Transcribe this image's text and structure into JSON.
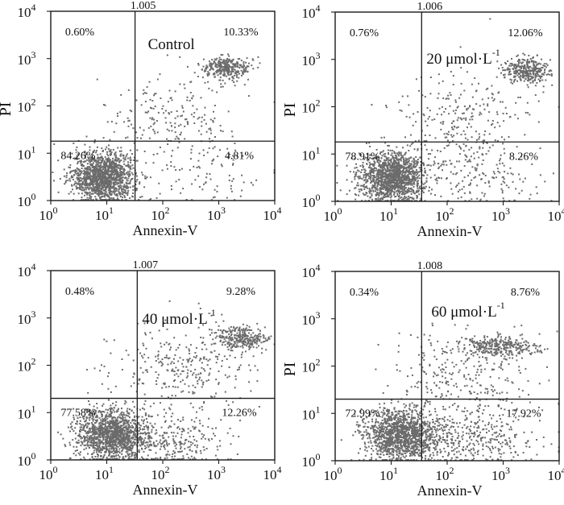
{
  "colors": {
    "dots": "#6b6b6b",
    "axes": "#1a1a1a",
    "background": "#ffffff"
  },
  "chart_data": [
    {
      "type": "scatter",
      "panel_id": "1.005",
      "condition": "Control",
      "xlabel": "Annexin-V",
      "ylabel": "PI",
      "xscale": "log",
      "yscale": "log",
      "xlim": [
        1,
        10000
      ],
      "ylim": [
        1,
        10000
      ],
      "gate": {
        "x": 32,
        "y": 18
      },
      "quadrants": {
        "upper_left": "0.60%",
        "upper_right": "10.33%",
        "lower_left": "84.26%",
        "lower_right": "4.81%"
      },
      "clusters": [
        {
          "name": "viable",
          "cx": 8.5,
          "cy": 3.3,
          "spread_x": 0.28,
          "spread_y": 0.26,
          "n": 1400
        },
        {
          "name": "late-apoptotic",
          "cx": 1400,
          "cy": 650,
          "spread_x": 0.22,
          "spread_y": 0.12,
          "n": 320
        },
        {
          "name": "trail",
          "cx": 130,
          "cy": 60,
          "spread_x": 0.55,
          "spread_y": 0.45,
          "n": 200
        },
        {
          "name": "early-apoptotic",
          "cx": 600,
          "cy": 4,
          "spread_x": 0.5,
          "spread_y": 0.35,
          "n": 90
        }
      ]
    },
    {
      "type": "scatter",
      "panel_id": "1.006",
      "condition": "20 μmol·L",
      "condition_sup": "-1",
      "xlabel": "Annexin-V",
      "ylabel": "PI",
      "xscale": "log",
      "yscale": "log",
      "xlim": [
        1,
        10000
      ],
      "ylim": [
        1,
        10000
      ],
      "gate": {
        "x": 35,
        "y": 18
      },
      "quadrants": {
        "upper_left": "0.76%",
        "upper_right": "12.06%",
        "lower_left": "78.91%",
        "lower_right": "8.26%"
      },
      "clusters": [
        {
          "name": "viable",
          "cx": 10,
          "cy": 3.3,
          "spread_x": 0.3,
          "spread_y": 0.27,
          "n": 1400
        },
        {
          "name": "late-apoptotic",
          "cx": 2500,
          "cy": 600,
          "spread_x": 0.2,
          "spread_y": 0.13,
          "n": 340
        },
        {
          "name": "trail",
          "cx": 200,
          "cy": 70,
          "spread_x": 0.6,
          "spread_y": 0.5,
          "n": 260
        },
        {
          "name": "early-apoptotic",
          "cx": 300,
          "cy": 3.5,
          "spread_x": 0.55,
          "spread_y": 0.35,
          "n": 170
        }
      ]
    },
    {
      "type": "scatter",
      "panel_id": "1.007",
      "condition": "40 μmol·L",
      "condition_sup": "-1",
      "xlabel": "Annexin-V",
      "ylabel": "",
      "xscale": "log",
      "yscale": "log",
      "xlim": [
        1,
        10000
      ],
      "ylim": [
        1,
        10000
      ],
      "gate": {
        "x": 35,
        "y": 20
      },
      "quadrants": {
        "upper_left": "0.48%",
        "upper_right": "9.28%",
        "lower_left": "77.58%",
        "lower_right": "12.26%"
      },
      "clusters": [
        {
          "name": "viable",
          "cx": 12,
          "cy": 3.5,
          "spread_x": 0.32,
          "spread_y": 0.28,
          "n": 1400
        },
        {
          "name": "late-apoptotic",
          "cx": 2500,
          "cy": 380,
          "spread_x": 0.22,
          "spread_y": 0.13,
          "n": 300
        },
        {
          "name": "trail",
          "cx": 250,
          "cy": 90,
          "spread_x": 0.6,
          "spread_y": 0.5,
          "n": 300
        },
        {
          "name": "early-apoptotic",
          "cx": 150,
          "cy": 2.5,
          "spread_x": 0.45,
          "spread_y": 0.3,
          "n": 260
        }
      ]
    },
    {
      "type": "scatter",
      "panel_id": "1.008",
      "condition": "60 μmol·L",
      "condition_sup": "-1",
      "xlabel": "Annexin-V",
      "ylabel": "PI",
      "xscale": "log",
      "yscale": "log",
      "xlim": [
        1,
        10000
      ],
      "ylim": [
        1,
        10000
      ],
      "gate": {
        "x": 35,
        "y": 20
      },
      "quadrants": {
        "upper_left": "0.34%",
        "upper_right": "8.76%",
        "lower_left": "72.99%",
        "lower_right": "17.92%"
      },
      "clusters": [
        {
          "name": "viable",
          "cx": 14,
          "cy": 3.6,
          "spread_x": 0.33,
          "spread_y": 0.28,
          "n": 1350
        },
        {
          "name": "late-apoptotic",
          "cx": 900,
          "cy": 270,
          "spread_x": 0.35,
          "spread_y": 0.1,
          "n": 320
        },
        {
          "name": "trail",
          "cx": 200,
          "cy": 60,
          "spread_x": 0.6,
          "spread_y": 0.5,
          "n": 300
        },
        {
          "name": "early-apoptotic",
          "cx": 250,
          "cy": 3,
          "spread_x": 0.6,
          "spread_y": 0.3,
          "n": 380
        }
      ]
    }
  ]
}
